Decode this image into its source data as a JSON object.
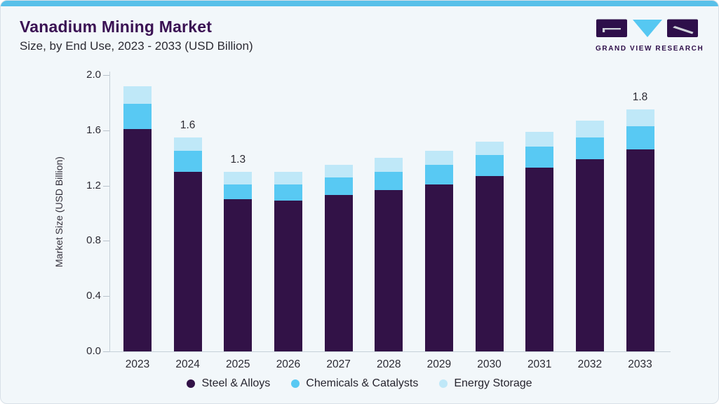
{
  "header": {
    "title": "Vanadium Mining Market",
    "subtitle": "Size, by End Use, 2023 - 2033 (USD Billion)"
  },
  "logo": {
    "text": "GRAND VIEW RESEARCH",
    "mark_colors": {
      "blocks": "#2e0f4a",
      "triangle": "#56c8f2",
      "glyph_lines": "#cfd3da"
    }
  },
  "chart_data": {
    "type": "bar",
    "stacked": true,
    "title": "Vanadium Mining Market Size, by End Use, 2023 - 2033 (USD Billion)",
    "ylabel": "Market Size (USD Billion)",
    "ylim": [
      0,
      2.0
    ],
    "ytick_labels": [
      "0.0",
      "0.4",
      "0.8",
      "1.2",
      "1.6",
      "2.0"
    ],
    "grid": false,
    "legend_position": "bottom",
    "categories": [
      "2023",
      "2024",
      "2025",
      "2026",
      "2027",
      "2028",
      "2029",
      "2030",
      "2031",
      "2032",
      "2033"
    ],
    "series": [
      {
        "name": "Steel & Alloys",
        "color": "#321247",
        "values": [
          1.61,
          1.3,
          1.1,
          1.09,
          1.13,
          1.17,
          1.21,
          1.27,
          1.33,
          1.39,
          1.46
        ]
      },
      {
        "name": "Chemicals & Catalysts",
        "color": "#58c9f3",
        "values": [
          0.18,
          0.15,
          0.11,
          0.12,
          0.13,
          0.13,
          0.14,
          0.15,
          0.15,
          0.16,
          0.17
        ]
      },
      {
        "name": "Energy Storage",
        "color": "#bfe8f8",
        "values": [
          0.13,
          0.1,
          0.09,
          0.09,
          0.09,
          0.1,
          0.1,
          0.1,
          0.11,
          0.12,
          0.12
        ]
      }
    ],
    "bar_labels": {
      "2024": "1.6",
      "2025": "1.3",
      "2033": "1.8"
    }
  },
  "colors": {
    "accent_strip": "#58c0e9",
    "card_background": "#f2f7fa",
    "title_text": "#3a1153",
    "axis_line": "#c6d0d8"
  }
}
